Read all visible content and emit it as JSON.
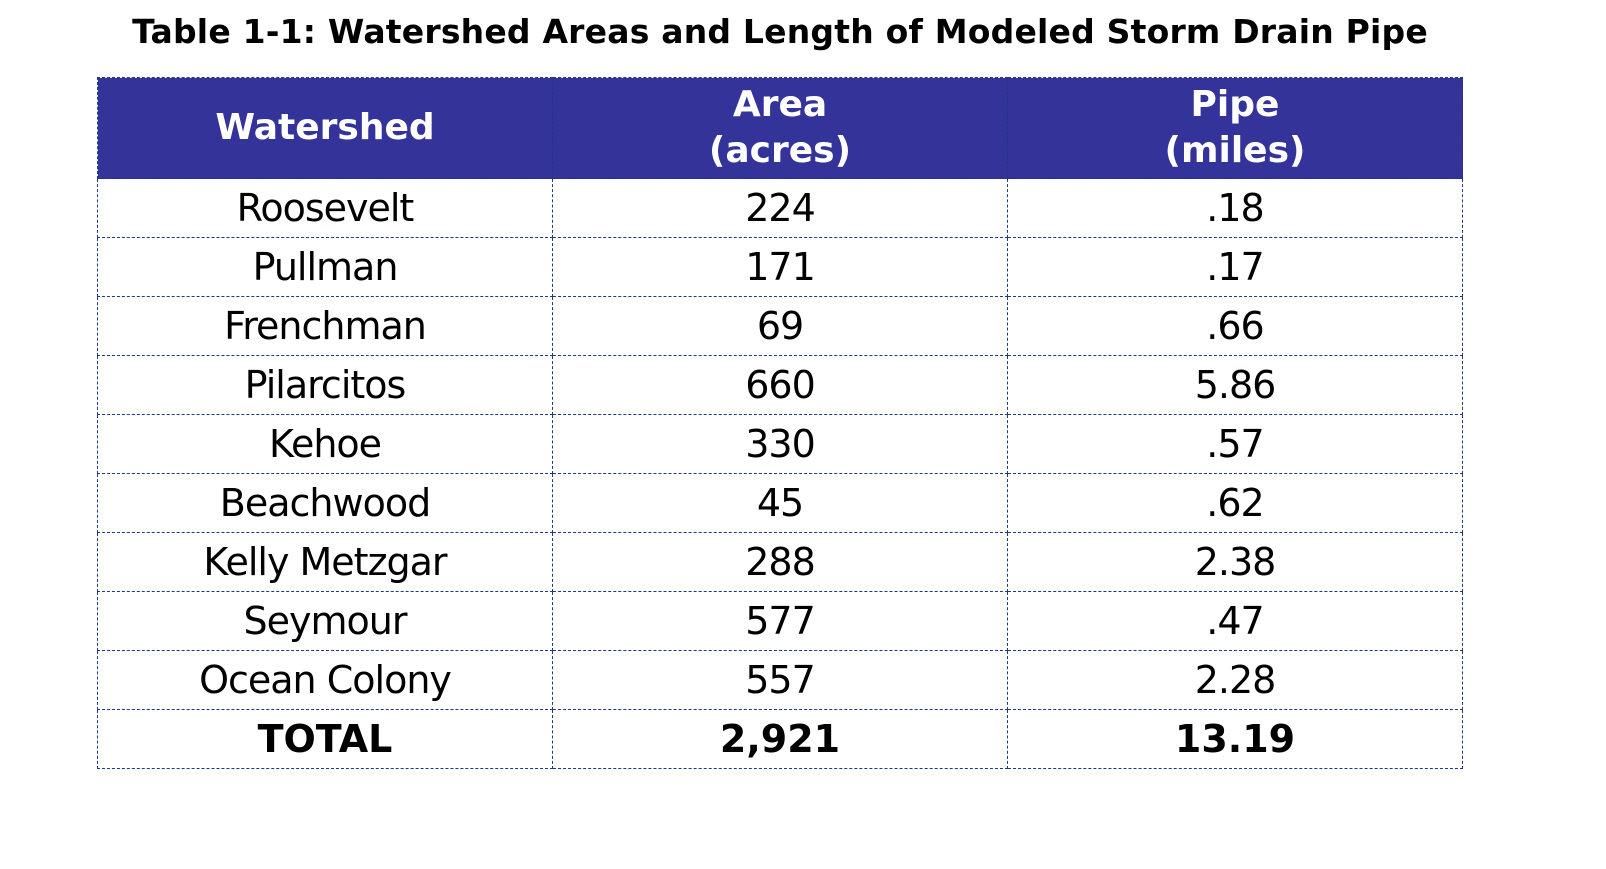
{
  "title": "Table 1-1: Watershed Areas and Length of Modeled Storm Drain Pipe",
  "header_color": "#333399",
  "columns": [
    {
      "line1": "Watershed",
      "line2": ""
    },
    {
      "line1": "Area",
      "line2": "(acres)"
    },
    {
      "line1": "Pipe",
      "line2": "(miles)"
    }
  ],
  "rows": [
    [
      "Roosevelt",
      "224",
      ".18"
    ],
    [
      "Pullman",
      "171",
      ".17"
    ],
    [
      "Frenchman",
      "69",
      ".66"
    ],
    [
      "Pilarcitos",
      "660",
      "5.86"
    ],
    [
      "Kehoe",
      "330",
      ".57"
    ],
    [
      "Beachwood",
      "45",
      ".62"
    ],
    [
      "Kelly Metzgar",
      "288",
      "2.38"
    ],
    [
      "Seymour",
      "577",
      ".47"
    ],
    [
      "Ocean Colony",
      "557",
      "2.28"
    ]
  ],
  "total": [
    "TOTAL",
    "2,921",
    "13.19"
  ]
}
